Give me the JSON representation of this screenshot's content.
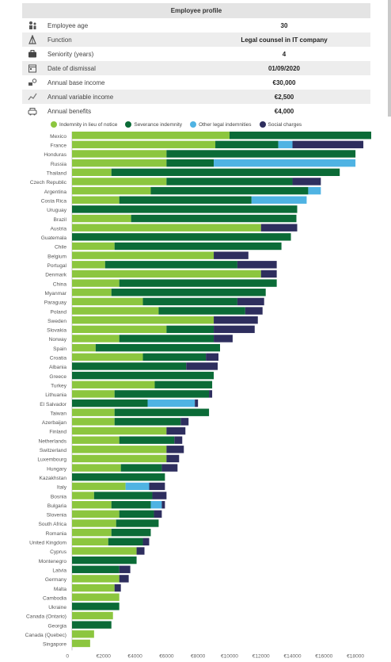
{
  "profile": {
    "title": "Employee profile",
    "rows": [
      {
        "icon": "age-icon",
        "label": "Employee age",
        "value": "30"
      },
      {
        "icon": "function-icon",
        "label": "Function",
        "value": "Legal counsel in IT company"
      },
      {
        "icon": "briefcase-icon",
        "label": "Seniority (years)",
        "value": "4"
      },
      {
        "icon": "calendar-icon",
        "label": "Date of dismissal",
        "value": "01/09/2020"
      },
      {
        "icon": "income-icon",
        "label": "Annual base income",
        "value": "€30,000"
      },
      {
        "icon": "variable-income-icon",
        "label": "Annual variable income",
        "value": "€2,500"
      },
      {
        "icon": "benefits-icon",
        "label": "Annual benefits",
        "value": "€4,000"
      }
    ]
  },
  "colors": {
    "notice": "#8cc63f",
    "severance": "#0b6b37",
    "other": "#4fb3e3",
    "social": "#2e2e5e"
  },
  "chart_data": {
    "type": "bar",
    "orientation": "horizontal",
    "stacked": true,
    "legend": [
      "Indemnity in lieu of notice",
      "Severance indemnity",
      "Other legal indemnities",
      "Social charges"
    ],
    "legend_position": "top",
    "xlim": [
      0,
      19000
    ],
    "x_ticks": [
      "0",
      "€2000",
      "€4000",
      "€6000",
      "€8000",
      "€10000",
      "€12000",
      "€14000",
      "€16000",
      "€18000"
    ],
    "categories": [
      "Mexico",
      "France",
      "Honduras",
      "Russia",
      "Thailand",
      "Czech Republic",
      "Argentina",
      "Costa Rica",
      "Uruguay",
      "Brazil",
      "Austria",
      "Guatemala",
      "Chile",
      "Belgium",
      "Portugal",
      "Denmark",
      "China",
      "Myanmar",
      "Paraguay",
      "Poland",
      "Sweden",
      "Slovakia",
      "Norway",
      "Spain",
      "Croatia",
      "Albania",
      "Greece",
      "Turkey",
      "Lithuania",
      "El Salvador",
      "Taiwan",
      "Azerbaijan",
      "Finland",
      "Netherlands",
      "Switzerland",
      "Luxembourg",
      "Hungary",
      "Kazakhstan",
      "Italy",
      "Bosnia",
      "Bulgaria",
      "Slovenia",
      "South Africa",
      "Romania",
      "United Kingdom",
      "Cyprus",
      "Montenegro",
      "Latvia",
      "Germany",
      "Malta",
      "Cambodia",
      "Ukraine",
      "Canada (Ontario)",
      "Georgia",
      "Canada (Quebec)",
      "Singapore"
    ],
    "series": [
      {
        "name": "Indemnity in lieu of notice",
        "values": [
          10000,
          9100,
          6000,
          6000,
          2500,
          6000,
          5000,
          3000,
          0,
          3750,
          12000,
          0,
          2700,
          9000,
          2100,
          12000,
          3000,
          2500,
          4500,
          5500,
          9000,
          6000,
          3000,
          1500,
          4500,
          0,
          0,
          5250,
          2700,
          0,
          2700,
          2700,
          6000,
          3000,
          6000,
          6000,
          3100,
          0,
          3400,
          1400,
          2500,
          3000,
          2800,
          2500,
          2300,
          4100,
          0,
          0,
          3000,
          2700,
          3000,
          0,
          2600,
          0,
          1400,
          1150
        ]
      },
      {
        "name": "Severance indemnity",
        "values": [
          9000,
          4000,
          12000,
          3000,
          14500,
          8000,
          10000,
          8400,
          14300,
          10500,
          0,
          13900,
          10600,
          0,
          8400,
          0,
          10000,
          9800,
          6000,
          5500,
          0,
          3000,
          6000,
          7900,
          4000,
          7250,
          9000,
          3650,
          6000,
          4800,
          6000,
          4200,
          0,
          3500,
          0,
          0,
          2600,
          5900,
          0,
          3700,
          2500,
          2200,
          2700,
          2500,
          2200,
          0,
          4100,
          3000,
          0,
          0,
          0,
          3000,
          0,
          2500,
          0,
          0
        ]
      },
      {
        "name": "Other legal indemnities",
        "values": [
          0,
          900,
          0,
          9000,
          0,
          0,
          800,
          3500,
          0,
          0,
          0,
          0,
          0,
          0,
          0,
          0,
          0,
          0,
          0,
          0,
          0,
          0,
          0,
          0,
          0,
          0,
          0,
          0,
          0,
          3000,
          0,
          0,
          0,
          0,
          0,
          0,
          0,
          0,
          1500,
          0,
          700,
          0,
          0,
          0,
          0,
          0,
          0,
          0,
          0,
          0,
          0,
          0,
          0,
          0,
          0,
          0
        ]
      },
      {
        "name": "Social charges",
        "values": [
          0,
          4500,
          0,
          0,
          0,
          1800,
          0,
          0,
          0,
          0,
          2300,
          0,
          0,
          2200,
          2500,
          1000,
          0,
          0,
          1700,
          1100,
          2800,
          2600,
          1200,
          0,
          800,
          2000,
          0,
          0,
          200,
          200,
          0,
          500,
          1200,
          500,
          1100,
          800,
          1000,
          0,
          1000,
          900,
          200,
          500,
          0,
          0,
          400,
          500,
          0,
          700,
          600,
          400,
          0,
          0,
          0,
          0,
          0,
          0
        ]
      }
    ]
  }
}
